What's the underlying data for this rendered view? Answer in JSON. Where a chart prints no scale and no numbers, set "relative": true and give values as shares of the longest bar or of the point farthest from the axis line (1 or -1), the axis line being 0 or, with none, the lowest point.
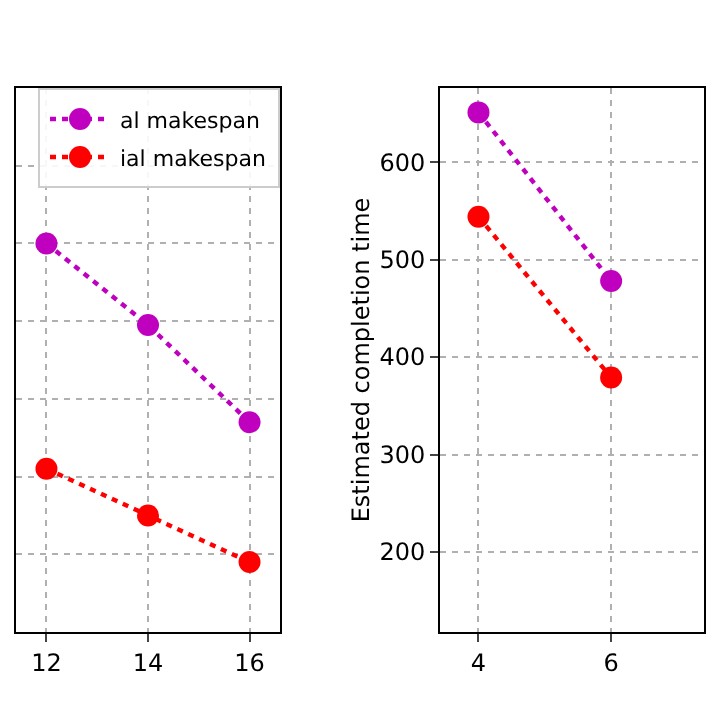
{
  "chart_data": [
    {
      "type": "line",
      "relative": true,
      "x": [
        12,
        14,
        16
      ],
      "xlim": [
        11.4,
        16.6
      ],
      "xticks": [
        12,
        14,
        16
      ],
      "grid": true,
      "legend": "top right",
      "marker": "circle",
      "line_style": "dotted",
      "series": [
        {
          "name": "al makespan",
          "color": "#bf00bf",
          "values": [
            1,
            0.79,
            0.54
          ]
        },
        {
          "name": "ial makespan",
          "color": "#ff0000",
          "values": [
            0.42,
            0.3,
            0.18
          ]
        }
      ]
    },
    {
      "type": "line",
      "x": [
        4,
        6
      ],
      "xlim": [
        3.42,
        7.4
      ],
      "xticks": [
        4,
        6
      ],
      "ylim": [
        118,
        676
      ],
      "yticks": [
        200,
        300,
        400,
        500,
        600
      ],
      "ylabel": "Estimated completion time",
      "grid": true,
      "marker": "circle",
      "line_style": "dotted",
      "series": [
        {
          "color": "#bf00bf",
          "values": [
            651,
            478
          ]
        },
        {
          "color": "#ff0000",
          "values": [
            544,
            379
          ]
        }
      ]
    }
  ]
}
